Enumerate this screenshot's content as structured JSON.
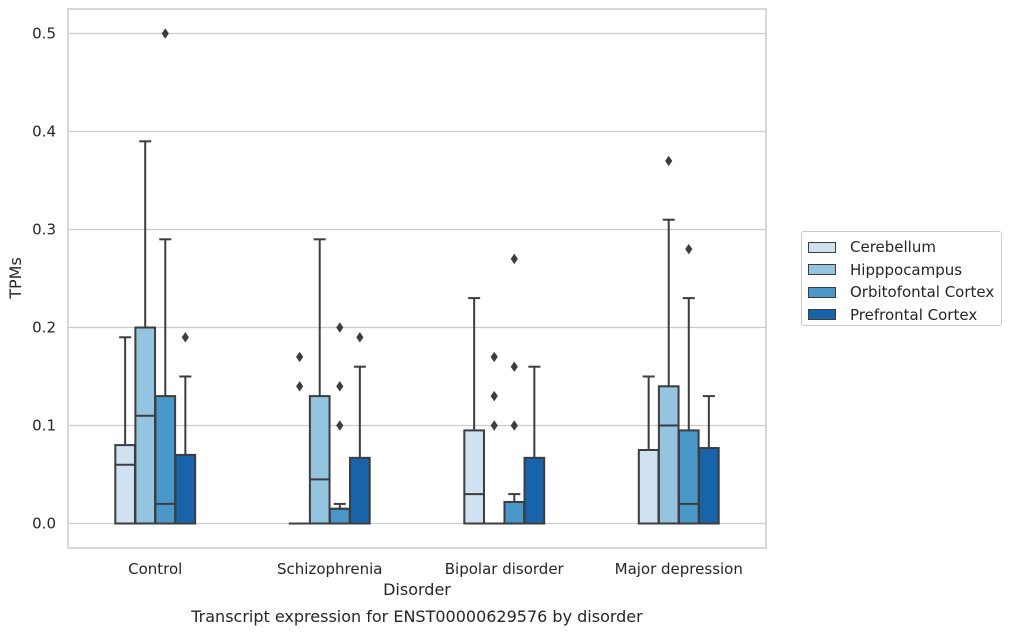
{
  "chart_data": {
    "type": "boxplot",
    "title": "Transcript expression for ENST00000629576 by disorder",
    "xlabel": "Disorder",
    "ylabel": "TPMs",
    "ylim": [
      -0.025,
      0.525
    ],
    "yticks": [
      "0.0",
      "0.1",
      "0.2",
      "0.3",
      "0.4",
      "0.5"
    ],
    "grid": true,
    "legend_position": "right",
    "categories": [
      "Control",
      "Schizophrenia",
      "Bipolar disorder",
      "Major depression"
    ],
    "series": [
      {
        "name": "Cerebellum",
        "color": "#d0e1f2",
        "boxes": [
          {
            "q1": 0.0,
            "median": 0.06,
            "q3": 0.08,
            "whisker_low": 0.0,
            "whisker_high": 0.19,
            "outliers": []
          },
          {
            "q1": 0.0,
            "median": 0.0,
            "q3": 0.0,
            "whisker_low": 0.0,
            "whisker_high": 0.0,
            "outliers": [
              0.14,
              0.17
            ]
          },
          {
            "q1": 0.0,
            "median": 0.03,
            "q3": 0.095,
            "whisker_low": 0.0,
            "whisker_high": 0.23,
            "outliers": []
          },
          {
            "q1": 0.0,
            "median": 0.0,
            "q3": 0.075,
            "whisker_low": 0.0,
            "whisker_high": 0.15,
            "outliers": []
          }
        ]
      },
      {
        "name": "Hipppocampus",
        "color": "#94c4df",
        "boxes": [
          {
            "q1": 0.0,
            "median": 0.11,
            "q3": 0.2,
            "whisker_low": 0.0,
            "whisker_high": 0.39,
            "outliers": []
          },
          {
            "q1": 0.0,
            "median": 0.045,
            "q3": 0.13,
            "whisker_low": 0.0,
            "whisker_high": 0.29,
            "outliers": []
          },
          {
            "q1": 0.0,
            "median": 0.0,
            "q3": 0.0,
            "whisker_low": 0.0,
            "whisker_high": 0.0,
            "outliers": [
              0.1,
              0.13,
              0.17
            ]
          },
          {
            "q1": 0.0,
            "median": 0.1,
            "q3": 0.14,
            "whisker_low": 0.0,
            "whisker_high": 0.31,
            "outliers": [
              0.37
            ]
          }
        ]
      },
      {
        "name": "Orbitofontal Cortex",
        "color": "#4a98c9",
        "boxes": [
          {
            "q1": 0.0,
            "median": 0.02,
            "q3": 0.13,
            "whisker_low": 0.0,
            "whisker_high": 0.29,
            "outliers": [
              0.5
            ]
          },
          {
            "q1": 0.0,
            "median": 0.015,
            "q3": 0.015,
            "whisker_low": 0.0,
            "whisker_high": 0.02,
            "outliers": [
              0.1,
              0.14,
              0.2
            ]
          },
          {
            "q1": 0.0,
            "median": 0.022,
            "q3": 0.022,
            "whisker_low": 0.0,
            "whisker_high": 0.03,
            "outliers": [
              0.1,
              0.16,
              0.27
            ]
          },
          {
            "q1": 0.0,
            "median": 0.02,
            "q3": 0.095,
            "whisker_low": 0.0,
            "whisker_high": 0.23,
            "outliers": [
              0.28
            ]
          }
        ]
      },
      {
        "name": "Prefrontal Cortex",
        "color": "#1764ab",
        "boxes": [
          {
            "q1": 0.0,
            "median": 0.0,
            "q3": 0.07,
            "whisker_low": 0.0,
            "whisker_high": 0.15,
            "outliers": [
              0.19
            ]
          },
          {
            "q1": 0.0,
            "median": 0.0,
            "q3": 0.067,
            "whisker_low": 0.0,
            "whisker_high": 0.16,
            "outliers": [
              0.19
            ]
          },
          {
            "q1": 0.0,
            "median": 0.0,
            "q3": 0.067,
            "whisker_low": 0.0,
            "whisker_high": 0.16,
            "outliers": []
          },
          {
            "q1": 0.0,
            "median": 0.0,
            "q3": 0.077,
            "whisker_low": 0.0,
            "whisker_high": 0.13,
            "outliers": []
          }
        ]
      }
    ]
  }
}
